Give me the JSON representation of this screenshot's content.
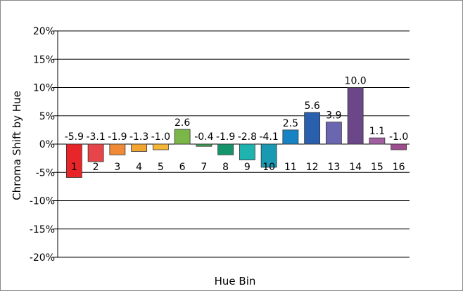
{
  "chart_data": {
    "type": "bar",
    "title": "",
    "xlabel": "Hue Bin",
    "ylabel": "Chroma Shift by Hue",
    "categories": [
      "1",
      "2",
      "3",
      "4",
      "5",
      "6",
      "7",
      "8",
      "9",
      "10",
      "11",
      "12",
      "13",
      "14",
      "15",
      "16"
    ],
    "values": [
      -5.9,
      -3.1,
      -1.9,
      -1.3,
      -1.0,
      2.6,
      -0.4,
      -1.9,
      -2.8,
      -4.1,
      2.5,
      5.6,
      3.9,
      10.0,
      1.1,
      -1.0
    ],
    "data_labels": [
      "-5.9",
      "-3.1",
      "-1.9",
      "-1.3",
      "-1.0",
      "2.6",
      "-0.4",
      "-1.9",
      "-2.8",
      "-4.1",
      "2.5",
      "5.6",
      "3.9",
      "10.0",
      "1.1",
      "-1.0"
    ],
    "yticks": [
      20,
      15,
      10,
      5,
      0,
      -5,
      -10,
      -15,
      -20
    ],
    "ytick_labels": [
      "20%",
      "15%",
      "10%",
      "5%",
      "0%",
      "-5%",
      "-10%",
      "-15%",
      "-20%"
    ],
    "ylim": [
      -20,
      20
    ],
    "grid": true,
    "legend": "none",
    "colors": [
      "#e8262a",
      "#e8454a",
      "#f08a36",
      "#f2a531",
      "#f3b637",
      "#7ab648",
      "#3f9e56",
      "#14946b",
      "#1fb3b0",
      "#1999b2",
      "#1683c5",
      "#2a5fae",
      "#6b66b0",
      "#6b4688",
      "#a15fa0",
      "#9e4d8e"
    ]
  }
}
